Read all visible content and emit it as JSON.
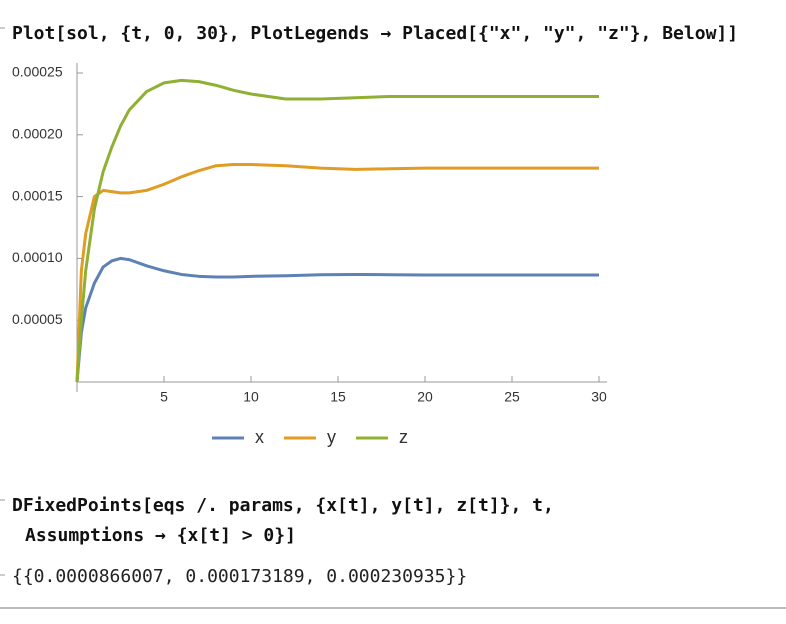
{
  "input_1": "Plot[sol, {t, 0, 30}, PlotLegends → Placed[{\"x\", \"y\", \"z\"}, Below]]",
  "chart_data": {
    "type": "line",
    "x": [
      0,
      0.25,
      0.5,
      1,
      1.5,
      2,
      2.5,
      3,
      4,
      5,
      6,
      7,
      8,
      9,
      10,
      12,
      14,
      16,
      18,
      20,
      25,
      30
    ],
    "series": [
      {
        "name": "x",
        "color": "#5e81b5",
        "values": [
          0,
          4e-05,
          6e-05,
          8e-05,
          9.3e-05,
          9.8e-05,
          0.0001,
          9.9e-05,
          9.4e-05,
          9e-05,
          8.7e-05,
          8.55e-05,
          8.5e-05,
          8.5e-05,
          8.55e-05,
          8.6e-05,
          8.68e-05,
          8.7e-05,
          8.68e-05,
          8.66e-05,
          8.66e-05,
          8.66e-05
        ]
      },
      {
        "name": "y",
        "color": "#e19c24",
        "values": [
          0,
          9e-05,
          0.00012,
          0.00015,
          0.000155,
          0.000154,
          0.000153,
          0.000153,
          0.000155,
          0.00016,
          0.000166,
          0.000171,
          0.000175,
          0.000176,
          0.000176,
          0.000175,
          0.000173,
          0.000172,
          0.0001725,
          0.000173,
          0.000173,
          0.000173
        ]
      },
      {
        "name": "z",
        "color": "#8fb032",
        "values": [
          0,
          5e-05,
          9e-05,
          0.00014,
          0.00017,
          0.00019,
          0.000207,
          0.00022,
          0.000235,
          0.000242,
          0.000244,
          0.000243,
          0.00024,
          0.000236,
          0.000233,
          0.000229,
          0.000229,
          0.00023,
          0.000231,
          0.000231,
          0.000231,
          0.000231
        ]
      }
    ],
    "xlim": [
      0,
      30
    ],
    "xticks": [
      5,
      10,
      15,
      20,
      25,
      30
    ],
    "ylim": [
      0,
      0.00025
    ],
    "yticks": [
      {
        "value": 5e-05,
        "label": "0.00005"
      },
      {
        "value": 0.0001,
        "label": "0.00010"
      },
      {
        "value": 0.00015,
        "label": "0.00015"
      },
      {
        "value": 0.0002,
        "label": "0.00020"
      },
      {
        "value": 0.00025,
        "label": "0.00025"
      }
    ],
    "legend": "below"
  },
  "input_2": [
    "DFixedPoints[eqs /. params, {x[t], y[t], z[t]}, t,",
    "Assumptions → {x[t] > 0}]"
  ],
  "output_2": "{{0.0000866007, 0.000173189, 0.000230935}}"
}
